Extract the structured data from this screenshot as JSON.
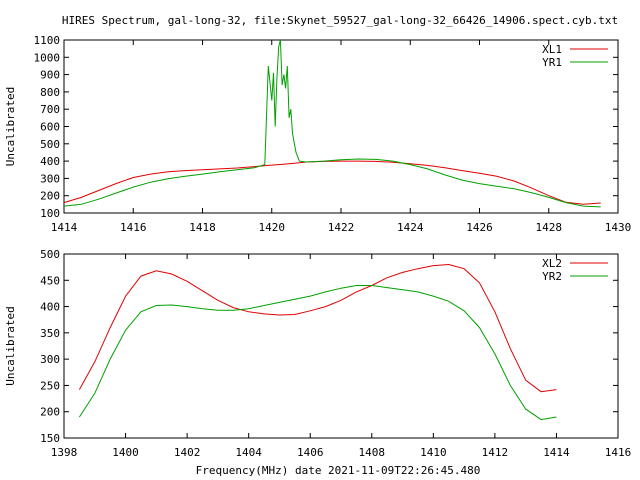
{
  "title": "HIRES Spectrum, gal-long-32, file:Skynet_59527_gal-long-32_66426_14906.spect.cyb.txt",
  "footer_xlabel": "Frequency(MHz) date 2021-11-09T22:26:45.480",
  "colors": {
    "red": "#e00000",
    "green": "#00a000"
  },
  "chart_data": [
    {
      "type": "line",
      "title": "",
      "xlabel": "",
      "ylabel": "Uncalibrated",
      "xlim": [
        1414,
        1430
      ],
      "ylim": [
        100,
        1100
      ],
      "xticks": [
        1414,
        1416,
        1418,
        1420,
        1422,
        1424,
        1426,
        1428,
        1430
      ],
      "yticks": [
        100,
        200,
        300,
        400,
        500,
        600,
        700,
        800,
        900,
        1000,
        1100
      ],
      "grid": false,
      "legend": "top-right",
      "series": [
        {
          "name": "XL1",
          "color": "#e00000",
          "x": [
            1414.0,
            1414.5,
            1415.0,
            1415.5,
            1416.0,
            1416.5,
            1417.0,
            1417.5,
            1418.0,
            1418.5,
            1419.0,
            1419.5,
            1419.9,
            1420.2,
            1420.5,
            1420.8,
            1421.0,
            1421.5,
            1422.0,
            1422.5,
            1423.0,
            1423.5,
            1424.0,
            1424.5,
            1425.0,
            1425.5,
            1426.0,
            1426.5,
            1427.0,
            1427.5,
            1428.0,
            1428.5,
            1429.0,
            1429.5
          ],
          "y": [
            160,
            190,
            230,
            270,
            305,
            325,
            338,
            345,
            350,
            355,
            360,
            368,
            375,
            380,
            385,
            390,
            395,
            398,
            400,
            400,
            398,
            393,
            385,
            375,
            362,
            345,
            330,
            312,
            285,
            245,
            200,
            162,
            150,
            158
          ]
        },
        {
          "name": "YR1",
          "color": "#00a000",
          "x": [
            1414.0,
            1414.5,
            1415.0,
            1415.5,
            1416.0,
            1416.5,
            1417.0,
            1417.5,
            1418.0,
            1418.5,
            1419.0,
            1419.5,
            1419.8,
            1419.9,
            1420.0,
            1420.05,
            1420.1,
            1420.15,
            1420.2,
            1420.25,
            1420.3,
            1420.35,
            1420.4,
            1420.45,
            1420.5,
            1420.55,
            1420.6,
            1420.7,
            1420.8,
            1421.0,
            1421.5,
            1422.0,
            1422.5,
            1423.0,
            1423.5,
            1424.0,
            1424.5,
            1425.0,
            1425.5,
            1426.0,
            1426.5,
            1427.0,
            1427.5,
            1428.0,
            1428.5,
            1429.0,
            1429.5
          ],
          "y": [
            140,
            150,
            180,
            215,
            250,
            278,
            298,
            312,
            325,
            338,
            350,
            362,
            380,
            950,
            750,
            910,
            600,
            880,
            1060,
            1100,
            840,
            900,
            820,
            950,
            650,
            700,
            560,
            450,
            400,
            395,
            400,
            408,
            412,
            410,
            400,
            380,
            355,
            320,
            290,
            270,
            255,
            240,
            218,
            190,
            160,
            140,
            135
          ]
        }
      ]
    },
    {
      "type": "line",
      "title": "",
      "xlabel": "Frequency(MHz)",
      "ylabel": "Uncalibrated",
      "xlim": [
        1398,
        1416
      ],
      "ylim": [
        150,
        500
      ],
      "xticks": [
        1398,
        1400,
        1402,
        1404,
        1406,
        1408,
        1410,
        1412,
        1414,
        1416
      ],
      "yticks": [
        150,
        200,
        250,
        300,
        350,
        400,
        450,
        500
      ],
      "grid": false,
      "legend": "top-right",
      "series": [
        {
          "name": "XL2",
          "color": "#e00000",
          "x": [
            1398.5,
            1399.0,
            1399.5,
            1400.0,
            1400.5,
            1401.0,
            1401.5,
            1402.0,
            1402.5,
            1403.0,
            1403.5,
            1404.0,
            1404.5,
            1405.0,
            1405.5,
            1406.0,
            1406.5,
            1407.0,
            1407.5,
            1408.0,
            1408.5,
            1409.0,
            1409.5,
            1410.0,
            1410.5,
            1411.0,
            1411.5,
            1412.0,
            1412.5,
            1413.0,
            1413.5,
            1414.0
          ],
          "y": [
            242,
            295,
            360,
            420,
            458,
            468,
            462,
            448,
            430,
            412,
            398,
            390,
            386,
            384,
            385,
            392,
            400,
            412,
            428,
            440,
            455,
            465,
            472,
            478,
            480,
            472,
            445,
            390,
            320,
            260,
            238,
            242
          ]
        },
        {
          "name": "YR2",
          "color": "#00a000",
          "x": [
            1398.5,
            1399.0,
            1399.5,
            1400.0,
            1400.5,
            1401.0,
            1401.5,
            1402.0,
            1402.5,
            1403.0,
            1403.5,
            1404.0,
            1404.5,
            1405.0,
            1405.5,
            1406.0,
            1406.5,
            1407.0,
            1407.5,
            1408.0,
            1408.5,
            1409.0,
            1409.5,
            1410.0,
            1410.5,
            1411.0,
            1411.5,
            1412.0,
            1412.5,
            1413.0,
            1413.5,
            1414.0
          ],
          "y": [
            190,
            235,
            300,
            355,
            390,
            402,
            403,
            400,
            396,
            393,
            393,
            396,
            402,
            408,
            414,
            420,
            428,
            435,
            440,
            440,
            436,
            432,
            428,
            420,
            410,
            392,
            360,
            310,
            250,
            205,
            185,
            190
          ]
        }
      ]
    }
  ]
}
